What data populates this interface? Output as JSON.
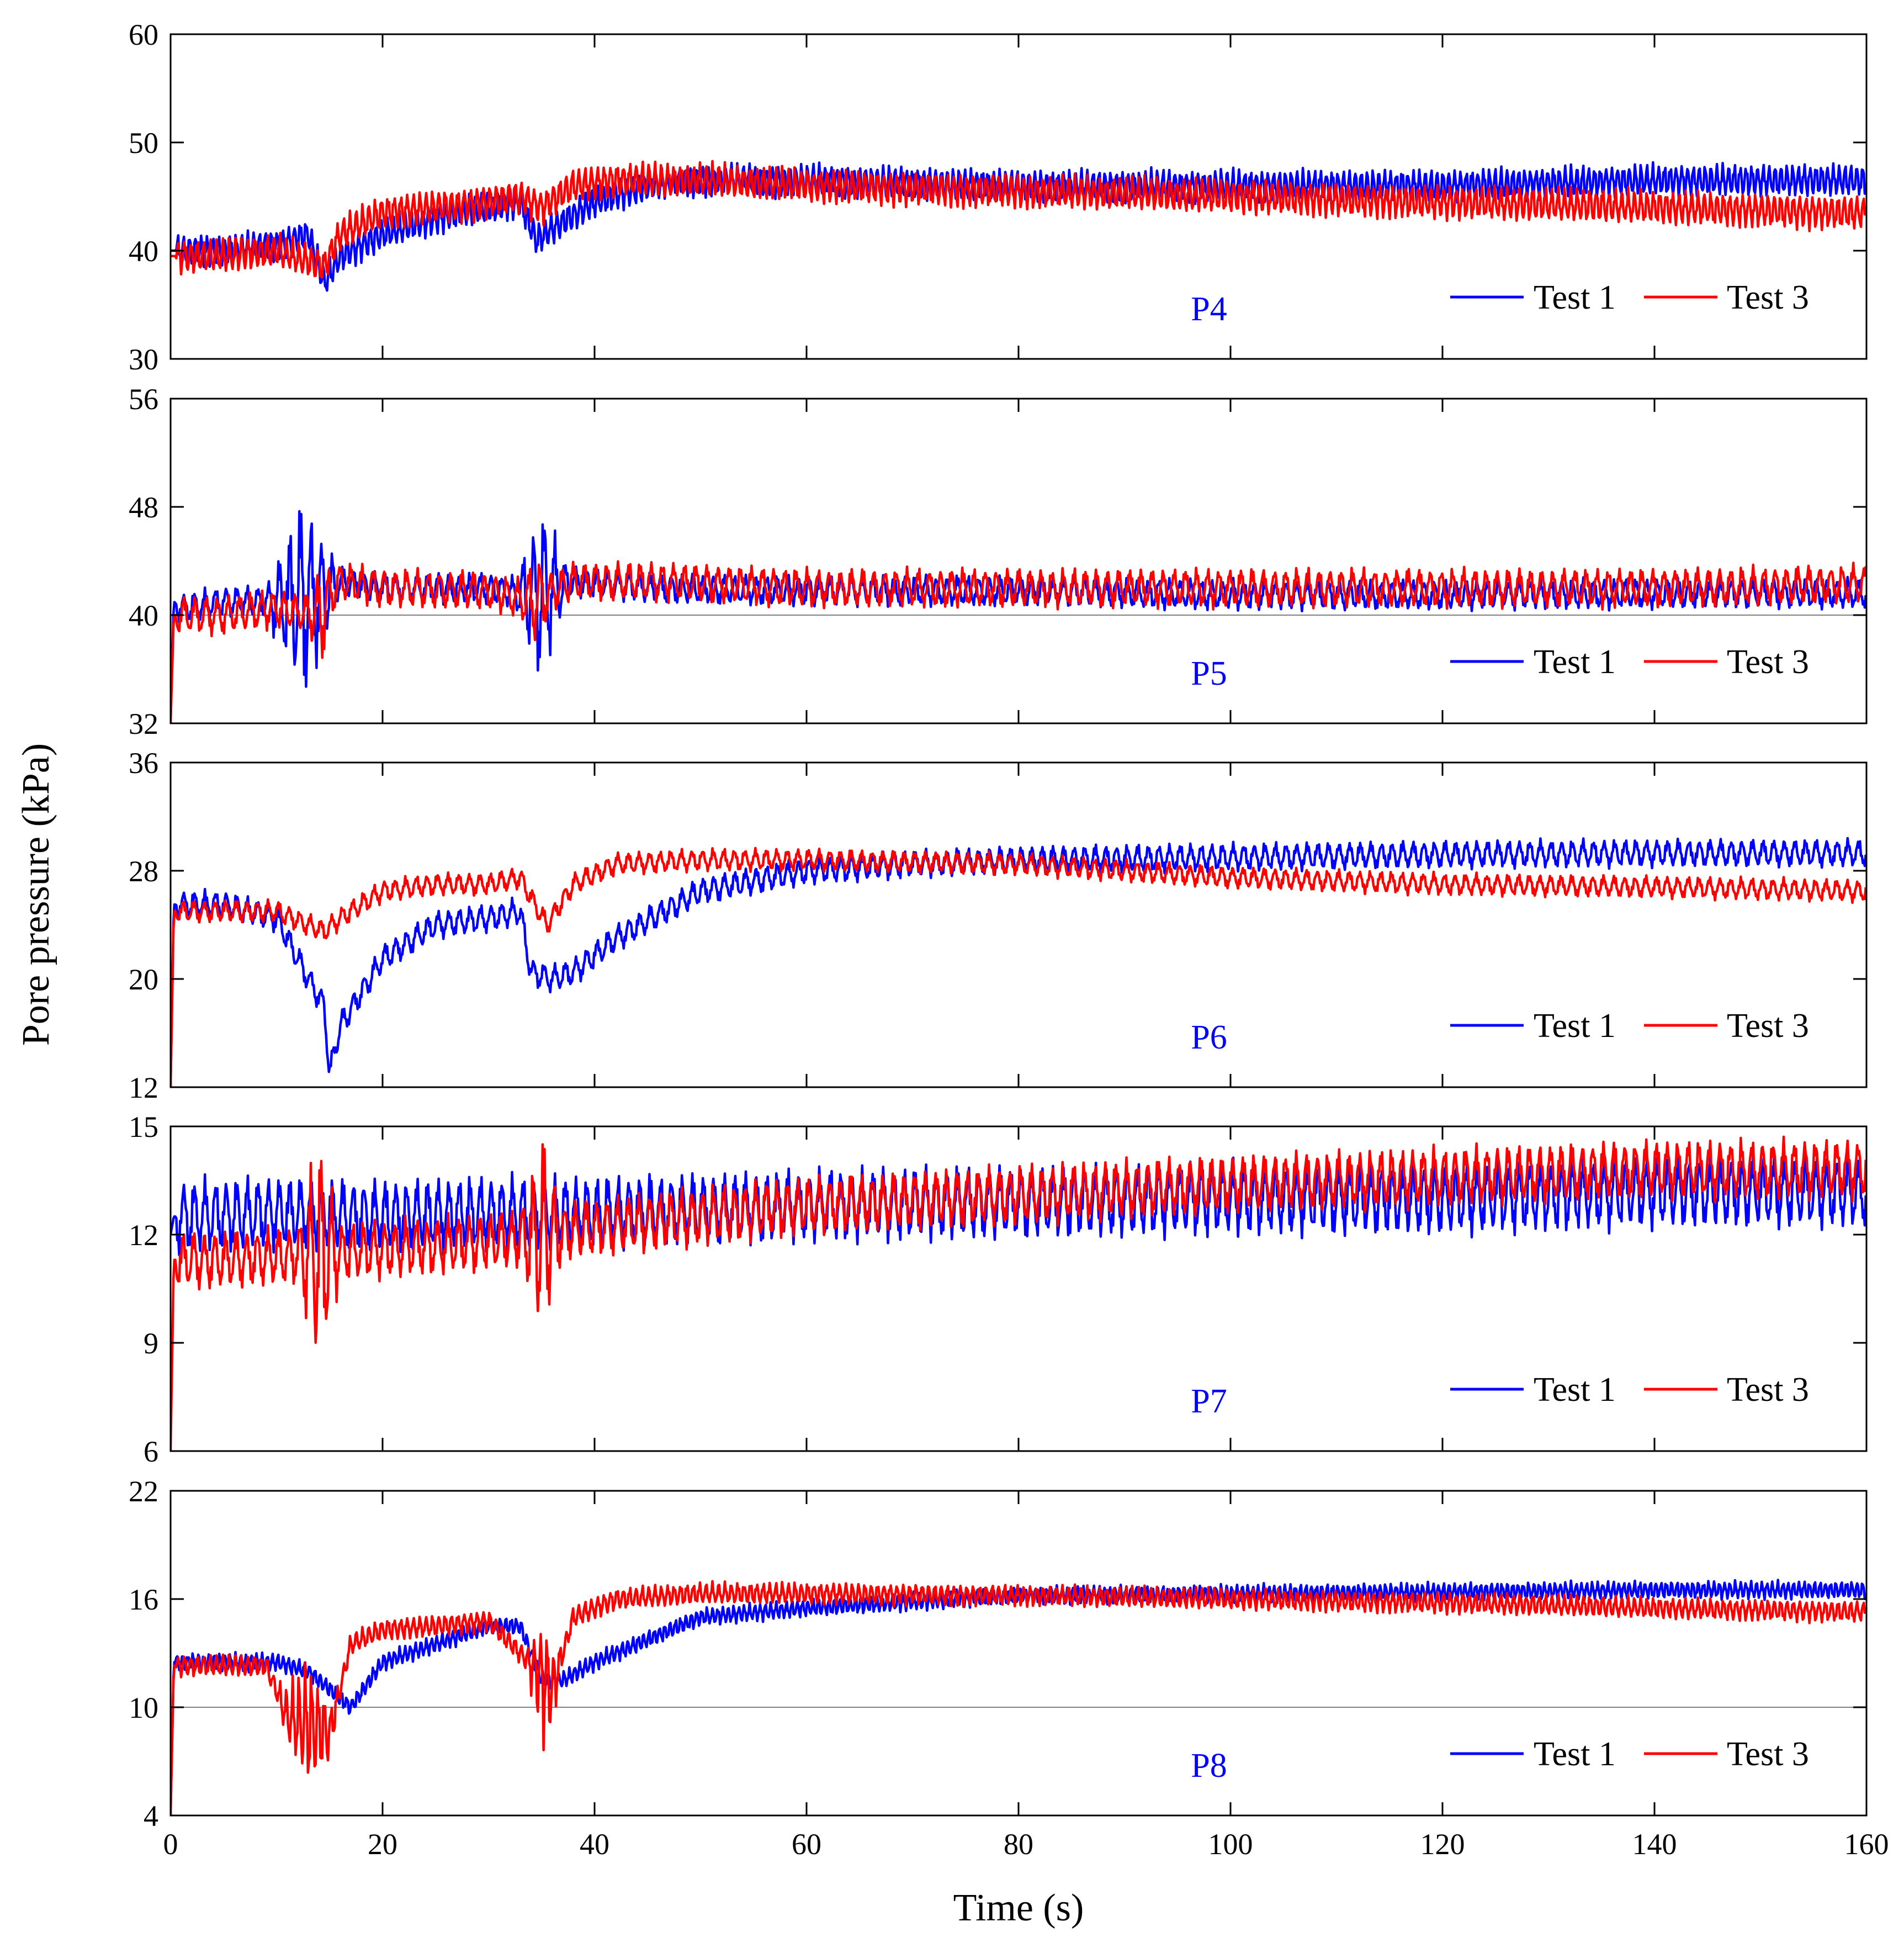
{
  "chart_data": {
    "type": "line",
    "xlabel": "Time (s)",
    "ylabel": "Pore pressure (kPa)",
    "xlim": [
      0,
      160
    ],
    "xticks": [
      0,
      20,
      40,
      60,
      80,
      100,
      120,
      140,
      160
    ],
    "colors": {
      "test1": "#0000ff",
      "test3": "#ff0000",
      "tag": "#0000ff",
      "refline": "#808080"
    },
    "panels": [
      {
        "label": "P4",
        "ylim": [
          30,
          60
        ],
        "yticks": [
          30,
          40,
          50,
          60
        ],
        "refline": null,
        "legend": [
          "Test 1",
          "Test 3"
        ],
        "series": [
          {
            "name": "Test 1",
            "x": [
              0,
              5,
              10,
              13,
              14.5,
              16,
              20,
              25,
              30,
              33,
              34.5,
              36,
              40,
              45,
              50,
              60,
              80,
              100,
              120,
              140,
              160
            ],
            "y": [
              40,
              40,
              40.5,
              41.5,
              37,
              39.5,
              41.5,
              43,
              44,
              44.5,
              41,
              42,
              44.5,
              46,
              46.5,
              46.5,
              46,
              46,
              46,
              46.5,
              46.5
            ],
            "amp": 1.5,
            "period": 0.55
          },
          {
            "name": "Test 3",
            "x": [
              0,
              5,
              10,
              13,
              14.5,
              16,
              20,
              25,
              30,
              33,
              35,
              38,
              42,
              50,
              60,
              80,
              100,
              120,
              140,
              160
            ],
            "y": [
              39.5,
              39.5,
              40,
              39,
              38.5,
              41.5,
              43.5,
              44,
              44.5,
              45,
              44,
              46,
              46.5,
              46.5,
              46,
              45.5,
              45,
              44.5,
              44,
              43.5
            ],
            "amp": 1.6,
            "period": 0.6
          }
        ]
      },
      {
        "label": "P5",
        "ylim": [
          32,
          56
        ],
        "yticks": [
          32,
          40,
          48,
          56
        ],
        "refline": 40,
        "legend": [
          "Test 1",
          "Test 3"
        ],
        "series": [
          {
            "name": "Test 1",
            "x": [
              0,
              0.3,
              1,
              5,
              10,
              14,
              16,
              20,
              30,
              34,
              38,
              45,
              60,
              80,
              100,
              120,
              140,
              160
            ],
            "y": [
              32,
              41,
              40.5,
              41,
              41,
              41.5,
              42.5,
              42,
              42,
              41.5,
              42.5,
              42,
              41.8,
              41.8,
              41.5,
              41.5,
              41.6,
              41.6
            ],
            "amp": 1.1,
            "period": 1.0,
            "burst": [
              [
                9,
                16,
                6.5
              ],
              [
                32.5,
                37.5,
                5.5
              ]
            ]
          },
          {
            "name": "Test 3",
            "x": [
              0,
              0.3,
              1,
              5,
              10,
              14,
              16,
              20,
              30,
              34,
              38,
              45,
              60,
              80,
              100,
              120,
              140,
              160
            ],
            "y": [
              32,
              40,
              40,
              40,
              40.5,
              40,
              42.5,
              42,
              41.8,
              41,
              42.5,
              42.5,
              42,
              42,
              42,
              42,
              42,
              42.3
            ],
            "amp": 1.4,
            "period": 1.05,
            "burst": [
              [
                13,
                15.5,
                2.5
              ],
              [
                33,
                36,
                2
              ]
            ]
          }
        ]
      },
      {
        "label": "P6",
        "ylim": [
          12,
          36
        ],
        "yticks": [
          12,
          20,
          28,
          36
        ],
        "refline": null,
        "legend": [
          "Test 1",
          "Test 3"
        ],
        "series": [
          {
            "name": "Test 1",
            "x": [
              0,
              0.3,
              1,
              5,
              10,
              13,
              14.5,
              15,
              16,
              20,
              25,
              30,
              33,
              34,
              36,
              38,
              42,
              50,
              60,
              70,
              80,
              100,
              120,
              140,
              160
            ],
            "y": [
              12,
              25.5,
              25.5,
              25.5,
              24.5,
              20,
              18,
              13,
              16.5,
              21.5,
              24,
              24.5,
              25,
              20.5,
              20,
              20.5,
              23,
              26.5,
              28,
              28.5,
              28.8,
              29,
              29.2,
              29.3,
              29.3
            ],
            "amp": 1.0,
            "period": 1.0
          },
          {
            "name": "Test 3",
            "x": [
              0,
              0.3,
              1,
              5,
              10,
              13,
              14.5,
              16,
              20,
              25,
              30,
              33,
              34,
              35.5,
              38,
              42,
              50,
              60,
              80,
              90,
              100,
              120,
              140,
              160
            ],
            "y": [
              12,
              25,
              25,
              25,
              25,
              24,
              23.5,
              24.5,
              26.5,
              27,
              27,
              27.5,
              26,
              24,
              27,
              28.5,
              28.8,
              28.8,
              28.5,
              28,
              27.5,
              27,
              26.8,
              26.5
            ],
            "amp": 0.8,
            "period": 1.0
          }
        ]
      },
      {
        "label": "P7",
        "ylim": [
          6,
          15
        ],
        "yticks": [
          6,
          9,
          12,
          15
        ],
        "refline": null,
        "legend": [
          "Test 1",
          "Test 3"
        ],
        "series": [
          {
            "name": "Test 1",
            "x": [
              0,
              0.3,
              1,
              10,
              20,
              30,
              40,
              60,
              80,
              100,
              120,
              140,
              160
            ],
            "y": [
              12,
              12.5,
              12.5,
              12.6,
              12.5,
              12.6,
              12.6,
              12.8,
              12.9,
              13,
              13,
              13.2,
              13.2
            ],
            "amp": 1.0,
            "period": 1.0
          },
          {
            "name": "Test 3",
            "x": [
              0,
              0.3,
              1,
              5,
              10,
              20,
              30,
              40,
              60,
              80,
              100,
              120,
              140,
              160
            ],
            "y": [
              6,
              11.3,
              11.3,
              11.3,
              11.4,
              11.6,
              11.8,
              12.2,
              12.8,
              13.1,
              13.4,
              13.6,
              13.8,
              13.8
            ],
            "amp": 0.8,
            "period": 1.0,
            "burst": [
              [
                12,
                16,
                2.5
              ],
              [
                33,
                37,
                2
              ]
            ]
          }
        ]
      },
      {
        "label": "P8",
        "ylim": [
          4,
          22
        ],
        "yticks": [
          4,
          10,
          16,
          22
        ],
        "refline": 10,
        "legend": [
          "Test 1",
          "Test 3"
        ],
        "series": [
          {
            "name": "Test 1",
            "x": [
              0,
              0.3,
              1,
              5,
              10,
              13,
              15,
              17,
              20,
              25,
              30,
              33,
              35,
              37,
              40,
              50,
              60,
              80,
              100,
              120,
              140,
              160
            ],
            "y": [
              4,
              12.5,
              12.5,
              12.5,
              12.5,
              12,
              11,
              10,
              12.5,
              13.5,
              14.5,
              14.5,
              11.5,
              11.5,
              12.5,
              15,
              15.5,
              16.2,
              16.3,
              16.4,
              16.5,
              16.5
            ],
            "amp": 0.5,
            "period": 0.5
          },
          {
            "name": "Test 3",
            "x": [
              0,
              0.3,
              1,
              5,
              9,
              11,
              13,
              15,
              17,
              20,
              25,
              30,
              33,
              36,
              38,
              42,
              50,
              60,
              80,
              100,
              120,
              140,
              160
            ],
            "y": [
              4,
              12.3,
              12.3,
              12.3,
              12.3,
              9.5,
              9,
              8.5,
              13.5,
              14.3,
              14.5,
              14.8,
              13,
              11,
              15,
              16,
              16.3,
              16.3,
              16.2,
              16,
              15.8,
              15.5,
              15.3
            ],
            "amp": 0.6,
            "period": 0.6,
            "burst": [
              [
                10,
                16,
                3
              ],
              [
                33.5,
                37,
                3
              ]
            ]
          }
        ]
      }
    ]
  }
}
